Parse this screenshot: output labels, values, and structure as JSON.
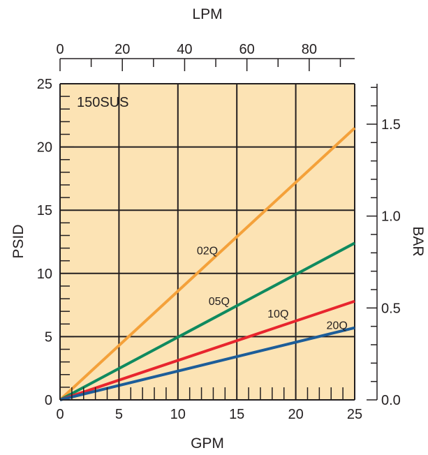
{
  "chart_data": {
    "type": "line",
    "annotation": "150SUS",
    "colors": {
      "plot_background": "#fce3b4",
      "grid": "#231f20",
      "axis": "#231f20"
    },
    "x_axis": {
      "label": "GPM",
      "range": [
        0,
        25
      ],
      "ticks": [
        0,
        5,
        10,
        15,
        20,
        25
      ],
      "tick_labels": [
        "0",
        "5",
        "10",
        "15",
        "20",
        "25"
      ],
      "minor_step": 1
    },
    "x2_axis": {
      "label": "LPM",
      "range": [
        0,
        94.6
      ],
      "ticks": [
        0,
        20,
        40,
        60,
        80
      ],
      "tick_labels": [
        "0",
        "20",
        "40",
        "60",
        "80"
      ],
      "minor_step": 10
    },
    "y_axis": {
      "label": "PSID",
      "range": [
        0,
        25
      ],
      "ticks": [
        0,
        5,
        10,
        15,
        20,
        25
      ],
      "tick_labels": [
        "0",
        "5",
        "10",
        "15",
        "20",
        "25"
      ],
      "minor_step": 1
    },
    "y2_axis": {
      "label": "BAR",
      "range": [
        0,
        1.72
      ],
      "ticks": [
        0,
        0.5,
        1.0,
        1.5
      ],
      "tick_labels": [
        "0.0",
        "0.5",
        "1.0",
        "1.5"
      ],
      "minor_step": 0.1
    },
    "grid": true,
    "series": [
      {
        "name": "02Q",
        "color": "#f4a13a",
        "x": [
          0,
          25
        ],
        "y": [
          0,
          21.5
        ],
        "label_at": [
          12.5,
          11.5
        ]
      },
      {
        "name": "05Q",
        "color": "#0f8a5f",
        "x": [
          0,
          25
        ],
        "y": [
          0,
          12.4
        ],
        "label_at": [
          13.5,
          7.5
        ]
      },
      {
        "name": "10Q",
        "color": "#e8252e",
        "x": [
          0,
          25
        ],
        "y": [
          0,
          7.8
        ],
        "label_at": [
          18.5,
          6.5
        ]
      },
      {
        "name": "20Q",
        "color": "#1c5d99",
        "x": [
          0,
          25
        ],
        "y": [
          0,
          5.7
        ],
        "label_at": [
          23.5,
          5.6
        ]
      }
    ]
  }
}
